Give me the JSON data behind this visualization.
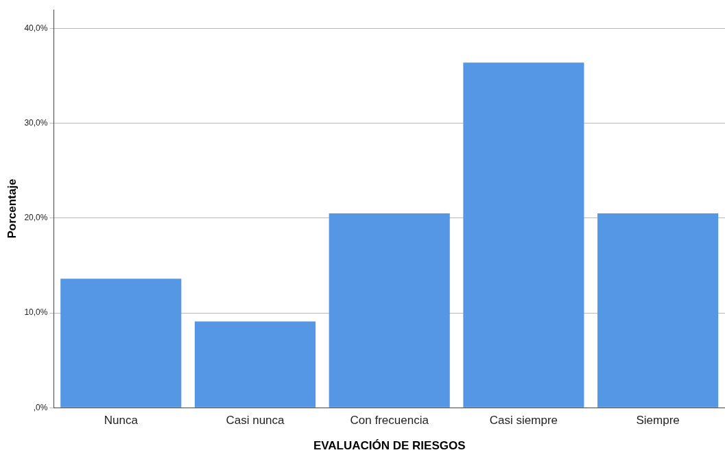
{
  "chart_data": {
    "type": "bar",
    "xlabel": "EVALUACIÓN DE RIESGOS",
    "ylabel": "Porcentaje",
    "categories": [
      "Nunca",
      "Casi nunca",
      "Con frecuencia",
      "Casi siempre",
      "Siempre"
    ],
    "values": [
      13.6,
      9.1,
      20.5,
      36.4,
      20.5
    ],
    "color": "#5596e5",
    "ylim": [
      0,
      42
    ],
    "yticks": [
      {
        "value": 0,
        "label": ",0%"
      },
      {
        "value": 10,
        "label": "10,0%"
      },
      {
        "value": 20,
        "label": "20,0%"
      },
      {
        "value": 30,
        "label": "30,0%"
      },
      {
        "value": 40,
        "label": "40,0%"
      }
    ],
    "grid": "y"
  }
}
